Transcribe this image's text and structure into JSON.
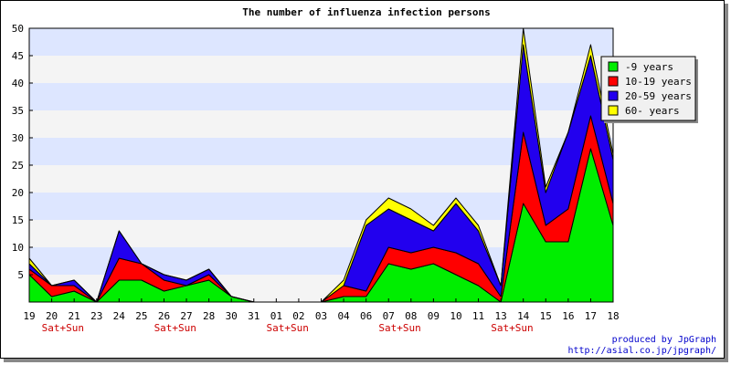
{
  "chart_data": {
    "type": "area",
    "stacked": true,
    "title": "The number of influenza infection persons",
    "xlabel": "",
    "ylabel": "",
    "ylim": [
      0,
      50
    ],
    "yticks": [
      5,
      10,
      15,
      20,
      25,
      30,
      35,
      40,
      45,
      50
    ],
    "grid": "horizontal bands",
    "legend_position": "top-right",
    "categories": [
      "19",
      "20",
      "21",
      "23",
      "24",
      "25",
      "26",
      "27",
      "28",
      "30",
      "31",
      "01",
      "02",
      "03",
      "04",
      "06",
      "07",
      "08",
      "09",
      "10",
      "11",
      "13",
      "14",
      "15",
      "16",
      "17",
      "18"
    ],
    "weekend_labels": [
      {
        "label": "Sat+Sun",
        "between": [
          "20",
          "21"
        ]
      },
      {
        "label": "Sat+Sun",
        "between": [
          "26",
          "27"
        ]
      },
      {
        "label": "Sat+Sun",
        "between": [
          "01",
          "02"
        ]
      },
      {
        "label": "Sat+Sun",
        "between": [
          "07",
          "08"
        ]
      },
      {
        "label": "Sat+Sun",
        "between": [
          "13",
          "14"
        ]
      }
    ],
    "series": [
      {
        "name": "-9 years",
        "color": "#00ee00",
        "values": [
          5,
          1,
          2,
          0,
          4,
          4,
          2,
          3,
          4,
          1,
          0,
          0,
          0,
          0,
          1,
          1,
          7,
          6,
          7,
          5,
          3,
          0,
          18,
          11,
          11,
          28,
          14
        ]
      },
      {
        "name": "10-19 years",
        "color": "#ff0000",
        "values": [
          1,
          2,
          1,
          0,
          4,
          3,
          2,
          0,
          1,
          0,
          0,
          0,
          0,
          0,
          2,
          1,
          3,
          3,
          3,
          4,
          4,
          1,
          13,
          3,
          6,
          6,
          4
        ]
      },
      {
        "name": "20-59 years",
        "color": "#2200ee",
        "values": [
          1,
          0,
          1,
          0,
          5,
          0,
          1,
          1,
          1,
          0,
          0,
          0,
          0,
          0,
          0,
          12,
          7,
          6,
          3,
          9,
          6,
          2,
          16,
          6,
          14,
          11,
          8
        ]
      },
      {
        "name": "60- years",
        "color": "#ffff00",
        "values": [
          1,
          0,
          0,
          0,
          0,
          0,
          0,
          0,
          0,
          0,
          0,
          0,
          0,
          0,
          1,
          1,
          2,
          2,
          1,
          1,
          1,
          0,
          3,
          1,
          0,
          2,
          1
        ]
      }
    ]
  },
  "credits": {
    "line1": "produced by JpGraph",
    "line2": "http://asial.co.jp/jpgraph/"
  }
}
